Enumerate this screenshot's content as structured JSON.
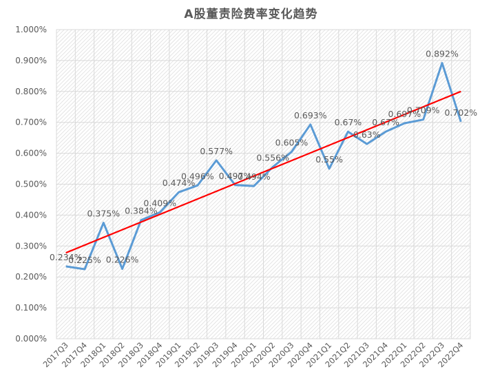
{
  "chart_data": {
    "type": "line",
    "title": "A股董责险费率变化趋势",
    "xlabel": "",
    "ylabel": "",
    "categories": [
      "2017Q3",
      "2017Q4",
      "2018Q1",
      "2018Q2",
      "2018Q3",
      "2018Q4",
      "2019Q1",
      "2019Q2",
      "2019Q3",
      "2019Q4",
      "2020Q1",
      "2020Q2",
      "2020Q3",
      "2020Q4",
      "2021Q1",
      "2021Q2",
      "2021Q3",
      "2021Q4",
      "2022Q1",
      "2022Q2",
      "2022Q3",
      "2022Q4"
    ],
    "series": [
      {
        "name": "董责险费率",
        "color": "#5B9BD5",
        "values": [
          0.234,
          0.225,
          0.375,
          0.226,
          0.384,
          0.409,
          0.474,
          0.496,
          0.577,
          0.497,
          0.494,
          0.556,
          0.605,
          0.693,
          0.55,
          0.67,
          0.63,
          0.67,
          0.697,
          0.709,
          0.892,
          0.702
        ],
        "labels": [
          "0.234%",
          "0.225%",
          "0.375%",
          "0.226%",
          "0.384%",
          "0.409%",
          "0.474%",
          "0.496%",
          "0.577%",
          "0.497%",
          "0.494%",
          "0.556%",
          "0.605%",
          "0.693%",
          "0.55%",
          "0.67%",
          "0.63%",
          "0.67%",
          "0.697%",
          "0.709%",
          "0.892%",
          "0.702%"
        ]
      },
      {
        "name": "线性趋势线",
        "color": "#FF0000",
        "type": "linear-trend",
        "start": 0.278,
        "end": 0.8
      }
    ],
    "ylim": [
      0,
      1.0
    ],
    "yticks": [
      "0.000%",
      "0.100%",
      "0.200%",
      "0.300%",
      "0.400%",
      "0.500%",
      "0.600%",
      "0.700%",
      "0.800%",
      "0.900%",
      "1.000%"
    ],
    "grid": true,
    "legend": "none",
    "background": "hatched"
  }
}
